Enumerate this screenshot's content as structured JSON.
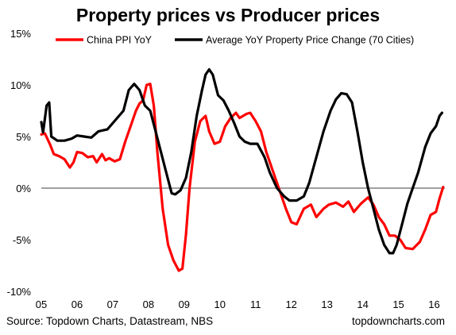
{
  "chart_data": {
    "type": "line",
    "title": "Property prices vs Producer prices",
    "xlabel": "",
    "ylabel": "",
    "x_ticks": [
      "05",
      "06",
      "07",
      "08",
      "09",
      "10",
      "11",
      "12",
      "13",
      "14",
      "15",
      "16"
    ],
    "y_ticks": [
      "15%",
      "10%",
      "5%",
      "0%",
      "-5%",
      "-10%"
    ],
    "y_tick_values": [
      15,
      10,
      5,
      0,
      -5,
      -10
    ],
    "ylim": [
      -10,
      15
    ],
    "xlim": [
      2005.0,
      2016.3
    ],
    "grid": false,
    "zero_line": true,
    "legend_position": "top",
    "series": [
      {
        "name": "China PPI YoY",
        "color": "#ff0000",
        "points": [
          [
            2005.0,
            5.2
          ],
          [
            2005.1,
            5.3
          ],
          [
            2005.25,
            4.2
          ],
          [
            2005.35,
            3.3
          ],
          [
            2005.5,
            3.1
          ],
          [
            2005.65,
            2.8
          ],
          [
            2005.8,
            2.0
          ],
          [
            2005.9,
            2.5
          ],
          [
            2006.0,
            3.5
          ],
          [
            2006.15,
            3.4
          ],
          [
            2006.3,
            3.0
          ],
          [
            2006.45,
            3.1
          ],
          [
            2006.55,
            2.5
          ],
          [
            2006.7,
            3.3
          ],
          [
            2006.8,
            2.7
          ],
          [
            2006.9,
            2.9
          ],
          [
            2007.05,
            2.6
          ],
          [
            2007.2,
            2.8
          ],
          [
            2007.35,
            4.5
          ],
          [
            2007.5,
            6.0
          ],
          [
            2007.65,
            7.5
          ],
          [
            2007.75,
            8.2
          ],
          [
            2007.85,
            8.5
          ],
          [
            2007.95,
            10.0
          ],
          [
            2008.05,
            10.1
          ],
          [
            2008.15,
            8.0
          ],
          [
            2008.25,
            3.5
          ],
          [
            2008.4,
            -2.0
          ],
          [
            2008.55,
            -5.5
          ],
          [
            2008.7,
            -7.0
          ],
          [
            2008.85,
            -8.0
          ],
          [
            2008.95,
            -7.8
          ],
          [
            2009.05,
            -4.5
          ],
          [
            2009.15,
            0.0
          ],
          [
            2009.3,
            4.5
          ],
          [
            2009.45,
            6.5
          ],
          [
            2009.6,
            7.0
          ],
          [
            2009.7,
            5.5
          ],
          [
            2009.85,
            4.3
          ],
          [
            2010.0,
            4.5
          ],
          [
            2010.15,
            6.0
          ],
          [
            2010.3,
            6.8
          ],
          [
            2010.45,
            7.3
          ],
          [
            2010.55,
            6.8
          ],
          [
            2010.75,
            7.2
          ],
          [
            2010.85,
            7.3
          ],
          [
            2011.0,
            6.5
          ],
          [
            2011.15,
            5.5
          ],
          [
            2011.3,
            3.5
          ],
          [
            2011.5,
            1.5
          ],
          [
            2011.7,
            -0.5
          ],
          [
            2011.85,
            -2.0
          ],
          [
            2012.0,
            -3.3
          ],
          [
            2012.15,
            -3.5
          ],
          [
            2012.35,
            -2.0
          ],
          [
            2012.55,
            -1.6
          ],
          [
            2012.7,
            -2.8
          ],
          [
            2012.9,
            -2.0
          ],
          [
            2013.05,
            -1.6
          ],
          [
            2013.25,
            -1.4
          ],
          [
            2013.45,
            -1.8
          ],
          [
            2013.6,
            -1.3
          ],
          [
            2013.75,
            -2.3
          ],
          [
            2013.95,
            -1.5
          ],
          [
            2014.15,
            -0.9
          ],
          [
            2014.3,
            -1.6
          ],
          [
            2014.45,
            -2.8
          ],
          [
            2014.6,
            -3.5
          ],
          [
            2014.75,
            -4.6
          ],
          [
            2014.9,
            -4.6
          ],
          [
            2015.05,
            -5.0
          ],
          [
            2015.2,
            -5.8
          ],
          [
            2015.4,
            -5.9
          ],
          [
            2015.6,
            -5.2
          ],
          [
            2015.75,
            -4.0
          ],
          [
            2015.9,
            -2.6
          ],
          [
            2016.05,
            -2.3
          ],
          [
            2016.15,
            -1.0
          ],
          [
            2016.25,
            0.1
          ]
        ]
      },
      {
        "name": "Average YoY Property Price Change (70 Cities)",
        "color": "#000000",
        "points": [
          [
            2005.0,
            6.4
          ],
          [
            2005.05,
            5.4
          ],
          [
            2005.15,
            8.0
          ],
          [
            2005.22,
            8.3
          ],
          [
            2005.28,
            5.0
          ],
          [
            2005.45,
            4.6
          ],
          [
            2005.65,
            4.6
          ],
          [
            2005.85,
            4.8
          ],
          [
            2006.0,
            5.1
          ],
          [
            2006.2,
            5.0
          ],
          [
            2006.4,
            4.9
          ],
          [
            2006.6,
            5.5
          ],
          [
            2006.85,
            5.7
          ],
          [
            2007.05,
            6.5
          ],
          [
            2007.3,
            7.5
          ],
          [
            2007.45,
            9.5
          ],
          [
            2007.6,
            10.1
          ],
          [
            2007.75,
            9.5
          ],
          [
            2007.9,
            8.0
          ],
          [
            2008.05,
            7.5
          ],
          [
            2008.2,
            5.5
          ],
          [
            2008.35,
            3.5
          ],
          [
            2008.5,
            1.5
          ],
          [
            2008.65,
            -0.5
          ],
          [
            2008.75,
            -0.6
          ],
          [
            2008.9,
            -0.2
          ],
          [
            2009.05,
            1.0
          ],
          [
            2009.2,
            3.5
          ],
          [
            2009.35,
            7.0
          ],
          [
            2009.5,
            9.5
          ],
          [
            2009.6,
            11.0
          ],
          [
            2009.7,
            11.5
          ],
          [
            2009.8,
            11.0
          ],
          [
            2009.95,
            9.0
          ],
          [
            2010.1,
            8.5
          ],
          [
            2010.25,
            7.5
          ],
          [
            2010.4,
            6.3
          ],
          [
            2010.55,
            5.0
          ],
          [
            2010.7,
            4.5
          ],
          [
            2010.85,
            4.3
          ],
          [
            2011.05,
            4.3
          ],
          [
            2011.25,
            3.0
          ],
          [
            2011.4,
            1.5
          ],
          [
            2011.6,
            0.0
          ],
          [
            2011.8,
            -0.8
          ],
          [
            2011.95,
            -1.2
          ],
          [
            2012.15,
            -1.2
          ],
          [
            2012.35,
            -0.8
          ],
          [
            2012.5,
            0.5
          ],
          [
            2012.7,
            3.0
          ],
          [
            2012.9,
            5.5
          ],
          [
            2013.1,
            7.5
          ],
          [
            2013.25,
            8.6
          ],
          [
            2013.4,
            9.2
          ],
          [
            2013.55,
            9.1
          ],
          [
            2013.7,
            8.3
          ],
          [
            2013.85,
            5.5
          ],
          [
            2014.0,
            2.5
          ],
          [
            2014.15,
            0.0
          ],
          [
            2014.3,
            -2.0
          ],
          [
            2014.45,
            -4.0
          ],
          [
            2014.6,
            -5.5
          ],
          [
            2014.75,
            -6.3
          ],
          [
            2014.85,
            -6.3
          ],
          [
            2014.95,
            -5.5
          ],
          [
            2015.1,
            -3.5
          ],
          [
            2015.25,
            -1.5
          ],
          [
            2015.4,
            0.0
          ],
          [
            2015.55,
            1.5
          ],
          [
            2015.75,
            4.0
          ],
          [
            2015.9,
            5.3
          ],
          [
            2016.05,
            6.0
          ],
          [
            2016.15,
            7.0
          ],
          [
            2016.22,
            7.3
          ]
        ]
      }
    ]
  },
  "footer": {
    "source": "Source: Topdown Charts, Datastream, NBS",
    "brand": "topdowncharts.com"
  }
}
